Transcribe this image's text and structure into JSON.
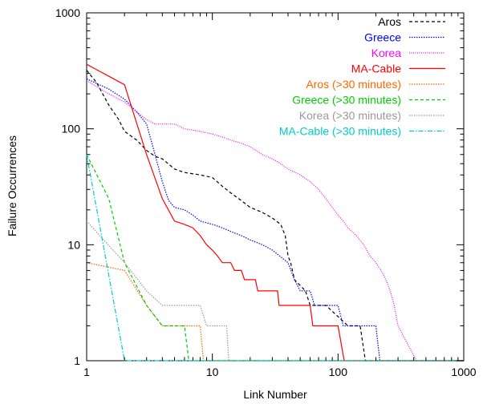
{
  "chart_data": {
    "type": "line",
    "title": "",
    "xlabel": "Link Number",
    "ylabel": "Failure Occurrences",
    "xscale": "log",
    "yscale": "log",
    "xlim": [
      1,
      1000
    ],
    "ylim": [
      1,
      1000
    ],
    "xticks": [
      {
        "value": 1,
        "label": "1"
      },
      {
        "value": 10,
        "label": "10"
      },
      {
        "value": 100,
        "label": "100"
      },
      {
        "value": 1000,
        "label": "1000"
      }
    ],
    "yticks": [
      {
        "value": 1,
        "label": "1"
      },
      {
        "value": 10,
        "label": "10"
      },
      {
        "value": 100,
        "label": "100"
      },
      {
        "value": 1000,
        "label": "1000"
      }
    ],
    "grid": false,
    "legend_position": "top-right",
    "series": [
      {
        "name": "Aros",
        "color": "#000000",
        "dash": "dashed",
        "points": [
          [
            1,
            320
          ],
          [
            1.2,
            250
          ],
          [
            1.5,
            160
          ],
          [
            1.8,
            120
          ],
          [
            2,
            95
          ],
          [
            2.5,
            80
          ],
          [
            3,
            65
          ],
          [
            3.5,
            58
          ],
          [
            4,
            55
          ],
          [
            5,
            45
          ],
          [
            6,
            42
          ],
          [
            8,
            40
          ],
          [
            10,
            38
          ],
          [
            12,
            32
          ],
          [
            14,
            28
          ],
          [
            17,
            24
          ],
          [
            20,
            21
          ],
          [
            25,
            19
          ],
          [
            30,
            17
          ],
          [
            35,
            15
          ],
          [
            38,
            12
          ],
          [
            40,
            8
          ],
          [
            42,
            7
          ],
          [
            45,
            5
          ],
          [
            55,
            4
          ],
          [
            60,
            3
          ],
          [
            80,
            3
          ],
          [
            120,
            2
          ],
          [
            150,
            2
          ],
          [
            165,
            1
          ],
          [
            1000,
            1
          ]
        ]
      },
      {
        "name": "Greece",
        "color": "#0000ff",
        "dash": "dotted",
        "points": [
          [
            1,
            270
          ],
          [
            1.5,
            220
          ],
          [
            2,
            180
          ],
          [
            2.5,
            140
          ],
          [
            3,
            110
          ],
          [
            3.5,
            60
          ],
          [
            4,
            35
          ],
          [
            4.5,
            24
          ],
          [
            5,
            21
          ],
          [
            6,
            20
          ],
          [
            7,
            18
          ],
          [
            8,
            16
          ],
          [
            10,
            15
          ],
          [
            12,
            14
          ],
          [
            14,
            13
          ],
          [
            17,
            12
          ],
          [
            20,
            11
          ],
          [
            25,
            10
          ],
          [
            30,
            9
          ],
          [
            40,
            7
          ],
          [
            45,
            5
          ],
          [
            50,
            4
          ],
          [
            60,
            4
          ],
          [
            65,
            3
          ],
          [
            100,
            3
          ],
          [
            110,
            2
          ],
          [
            150,
            2
          ],
          [
            200,
            2
          ],
          [
            215,
            1
          ],
          [
            1000,
            1
          ]
        ]
      },
      {
        "name": "Korea",
        "color": "#ff00ff",
        "dash": "fine-dotted",
        "points": [
          [
            1,
            260
          ],
          [
            1.5,
            200
          ],
          [
            2,
            170
          ],
          [
            2.5,
            140
          ],
          [
            3,
            120
          ],
          [
            3.5,
            110
          ],
          [
            5,
            110
          ],
          [
            6,
            100
          ],
          [
            8,
            95
          ],
          [
            10,
            90
          ],
          [
            12,
            85
          ],
          [
            14,
            80
          ],
          [
            17,
            75
          ],
          [
            20,
            70
          ],
          [
            25,
            60
          ],
          [
            30,
            55
          ],
          [
            35,
            50
          ],
          [
            40,
            45
          ],
          [
            50,
            40
          ],
          [
            60,
            35
          ],
          [
            70,
            30
          ],
          [
            80,
            25
          ],
          [
            90,
            21
          ],
          [
            100,
            18
          ],
          [
            110,
            16
          ],
          [
            120,
            14
          ],
          [
            140,
            12
          ],
          [
            160,
            10
          ],
          [
            180,
            8
          ],
          [
            200,
            7
          ],
          [
            220,
            6
          ],
          [
            240,
            5
          ],
          [
            260,
            4
          ],
          [
            280,
            3
          ],
          [
            300,
            2
          ],
          [
            420,
            1
          ],
          [
            1000,
            1
          ]
        ]
      },
      {
        "name": "MA-Cable",
        "color": "#ff0000",
        "dash": "solid",
        "points": [
          [
            1,
            360
          ],
          [
            2,
            240
          ],
          [
            3,
            60
          ],
          [
            4,
            25
          ],
          [
            5,
            16
          ],
          [
            6,
            15
          ],
          [
            7,
            14
          ],
          [
            8,
            12
          ],
          [
            9,
            10
          ],
          [
            10,
            9
          ],
          [
            11,
            8
          ],
          [
            12,
            7
          ],
          [
            14,
            7
          ],
          [
            15,
            6
          ],
          [
            17,
            6
          ],
          [
            18,
            5
          ],
          [
            22,
            5
          ],
          [
            23,
            4
          ],
          [
            33,
            4
          ],
          [
            34,
            3
          ],
          [
            60,
            3
          ],
          [
            63,
            2
          ],
          [
            100,
            2
          ],
          [
            112,
            1
          ],
          [
            1000,
            1
          ]
        ]
      },
      {
        "name": "Aros (>30 minutes)",
        "color": "#ff6600",
        "dash": "dotted",
        "points": [
          [
            1,
            7
          ],
          [
            2,
            6
          ],
          [
            3,
            3
          ],
          [
            4,
            2
          ],
          [
            8,
            2
          ],
          [
            8.5,
            1
          ],
          [
            1000,
            1
          ]
        ]
      },
      {
        "name": "Greece (>30 minutes)",
        "color": "#00cc00",
        "dash": "dashed",
        "points": [
          [
            1,
            60
          ],
          [
            1.5,
            25
          ],
          [
            2,
            7
          ],
          [
            3,
            3
          ],
          [
            4,
            2
          ],
          [
            6,
            2
          ],
          [
            6.5,
            1
          ],
          [
            1000,
            1
          ]
        ]
      },
      {
        "name": "Korea (>30 minutes)",
        "color": "#999999",
        "dash": "dotted",
        "points": [
          [
            1,
            16
          ],
          [
            2,
            7
          ],
          [
            3,
            4
          ],
          [
            4,
            3
          ],
          [
            8,
            3
          ],
          [
            9,
            2
          ],
          [
            13,
            2
          ],
          [
            13.5,
            1
          ],
          [
            1000,
            1
          ]
        ]
      },
      {
        "name": "MA-Cable (>30 minutes)",
        "color": "#00cccc",
        "dash": "dash-dot",
        "points": [
          [
            1,
            60
          ],
          [
            2,
            1
          ],
          [
            1000,
            1
          ]
        ]
      }
    ]
  }
}
